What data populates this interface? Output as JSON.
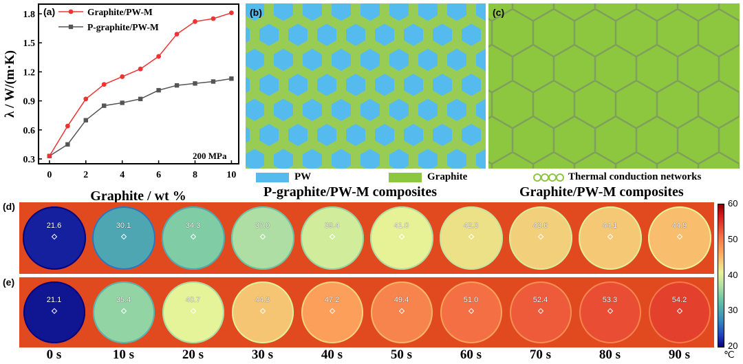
{
  "chart_data": {
    "type": "line",
    "panel_label": "(a)",
    "x": [
      0,
      1,
      2,
      3,
      4,
      5,
      6,
      7,
      8,
      9,
      10
    ],
    "xlabel": "Graphite / wt %",
    "ylabel": "λ / W/(m·K)",
    "ylim": [
      0.25,
      1.9
    ],
    "xticks": [
      "0",
      "2",
      "4",
      "6",
      "8",
      "10"
    ],
    "yticks": [
      "0.3",
      "0.6",
      "0.9",
      "1.2",
      "1.5",
      "1.8"
    ],
    "annotation": "200 MPa",
    "series": [
      {
        "name": "Graphite/PW-M",
        "color": "#ee3333",
        "marker": "circle",
        "values": [
          0.33,
          0.64,
          0.92,
          1.07,
          1.15,
          1.23,
          1.36,
          1.59,
          1.72,
          1.75,
          1.81
        ]
      },
      {
        "name": "P-graphite/PW-M",
        "color": "#555555",
        "marker": "square",
        "values": [
          0.33,
          0.45,
          0.7,
          0.85,
          0.88,
          0.92,
          1.01,
          1.06,
          1.08,
          1.1,
          1.13
        ]
      }
    ]
  },
  "panel_b": {
    "label": "(b)",
    "caption": "P-graphite/PW-M composites",
    "fill_color": "#55bbee",
    "border_color": "#99cc55"
  },
  "panel_c": {
    "label": "(c)",
    "caption": "Graphite/PW-M composites",
    "fill_color": "#8dc63f",
    "border_color": "#7a9a55"
  },
  "legend": {
    "pw": "PW",
    "graphite": "Graphite",
    "networks": "Thermal conduction networks"
  },
  "thermal": {
    "row_d_label": "(d)",
    "row_e_label": "(e)",
    "row_d_temps": [
      "21.6",
      "30.1",
      "34.3",
      "37.0",
      "39.4",
      "41.0",
      "42.3",
      "43.6",
      "44.1",
      "44.9"
    ],
    "row_e_temps": [
      "21.1",
      "35.4",
      "40.7",
      "44.3",
      "47.2",
      "49.4",
      "51.0",
      "52.4",
      "53.3",
      "54.2"
    ],
    "row_d_values": [
      21.6,
      30.1,
      34.3,
      37.0,
      39.4,
      41.0,
      42.3,
      43.6,
      44.1,
      44.9
    ],
    "row_e_values": [
      21.1,
      35.4,
      40.7,
      44.3,
      47.2,
      49.4,
      51.0,
      52.4,
      53.3,
      54.2
    ],
    "times": [
      "0 s",
      "10 s",
      "20 s",
      "30 s",
      "40 s",
      "50 s",
      "60 s",
      "70 s",
      "80 s",
      "90 s"
    ],
    "colorbar_ticks": [
      "60",
      "50",
      "40",
      "30",
      "20"
    ],
    "colorbar_range": [
      20,
      60
    ],
    "unit": "℃"
  }
}
